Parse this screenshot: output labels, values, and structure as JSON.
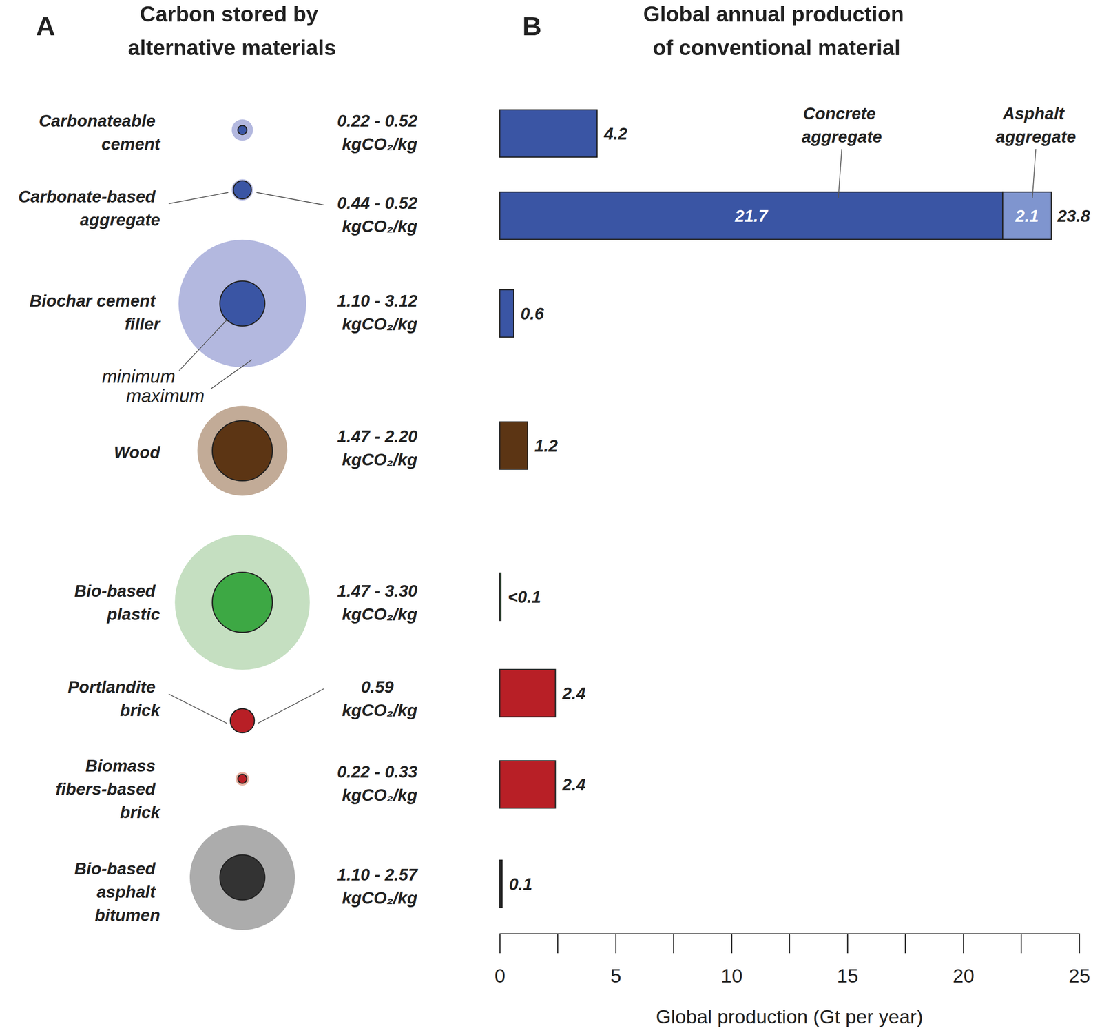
{
  "chart_data": [
    {
      "type": "bubble",
      "panel_label": "A",
      "title": "Carbon stored by\nalternative materials",
      "categories": [
        "Carbonateable\ncement",
        "Carbonate-based\naggregate",
        "Biochar cement\nfiller",
        "Wood",
        "Bio-based\nplastic",
        "Portlandite\nbrick",
        "Biomass\nfibers-based\nbrick",
        "Bio-based\nasphalt\nbitumen"
      ],
      "series": [
        {
          "name": "minimum",
          "values": [
            0.22,
            0.44,
            1.1,
            1.47,
            1.47,
            0.59,
            0.22,
            1.1
          ],
          "colors": [
            "#3a55a4",
            "#3a55a4",
            "#3a55a4",
            "#5c3514",
            "#3da844",
            "#b81f26",
            "#b81f26",
            "#333333"
          ]
        },
        {
          "name": "maximum",
          "values": [
            0.52,
            0.52,
            3.12,
            2.2,
            3.3,
            0.59,
            0.33,
            2.57
          ],
          "colors": [
            "#b3b8df",
            "#b3b8df",
            "#b3b8df",
            "#c2ab97",
            "#c5dfc1",
            "#b81f26",
            "#e6b3a3",
            "#acacac"
          ]
        }
      ],
      "range_labels": [
        "0.22 - 0.52",
        "0.44 - 0.52",
        "1.10 - 3.12",
        "1.47 - 2.20",
        "1.47 - 3.30",
        "0.59",
        "0.22 - 0.33",
        "1.10 - 2.57"
      ],
      "unit": "kgCO₂/kg"
    },
    {
      "type": "bar",
      "panel_label": "B",
      "title": "Global annual production\nof conventional material",
      "orientation": "horizontal",
      "stacked": true,
      "data_labels": true,
      "tick_labels": "x",
      "grid": false,
      "categories": [
        null,
        null,
        null,
        null,
        null,
        null,
        null,
        null
      ],
      "series": [
        {
          "values": [
            4.2,
            21.7,
            0.6,
            1.2,
            0.05,
            2.4,
            2.4,
            0.1
          ],
          "value_labels": [
            "4.2",
            "21.7",
            "0.6",
            "1.2",
            "<0.1",
            "2.4",
            "2.4",
            "0.1"
          ],
          "colors": [
            "#3a55a4",
            "#3a55a4",
            "#3a55a4",
            "#5c3514",
            "#3da844",
            "#b81f26",
            "#b81f26",
            "#2b2b2b"
          ]
        },
        {
          "values": [
            null,
            2.1,
            null,
            null,
            null,
            null,
            null,
            null
          ],
          "color": "#7f95cf"
        }
      ],
      "totals": [
        null,
        23.8,
        null,
        null,
        null,
        null,
        null,
        null
      ],
      "annotations": [
        {
          "text": "Concrete\naggregate",
          "series": 0,
          "index": 1
        },
        {
          "text": "Asphalt\naggregate",
          "series": 1,
          "index": 1
        }
      ],
      "xlim": [
        0,
        25
      ],
      "xticks": [
        0,
        5,
        10,
        15,
        20,
        25
      ],
      "minor_xticks": [
        2.5,
        7.5,
        12.5,
        17.5,
        22.5
      ],
      "xlabel": "Global production (Gt per year)"
    }
  ]
}
